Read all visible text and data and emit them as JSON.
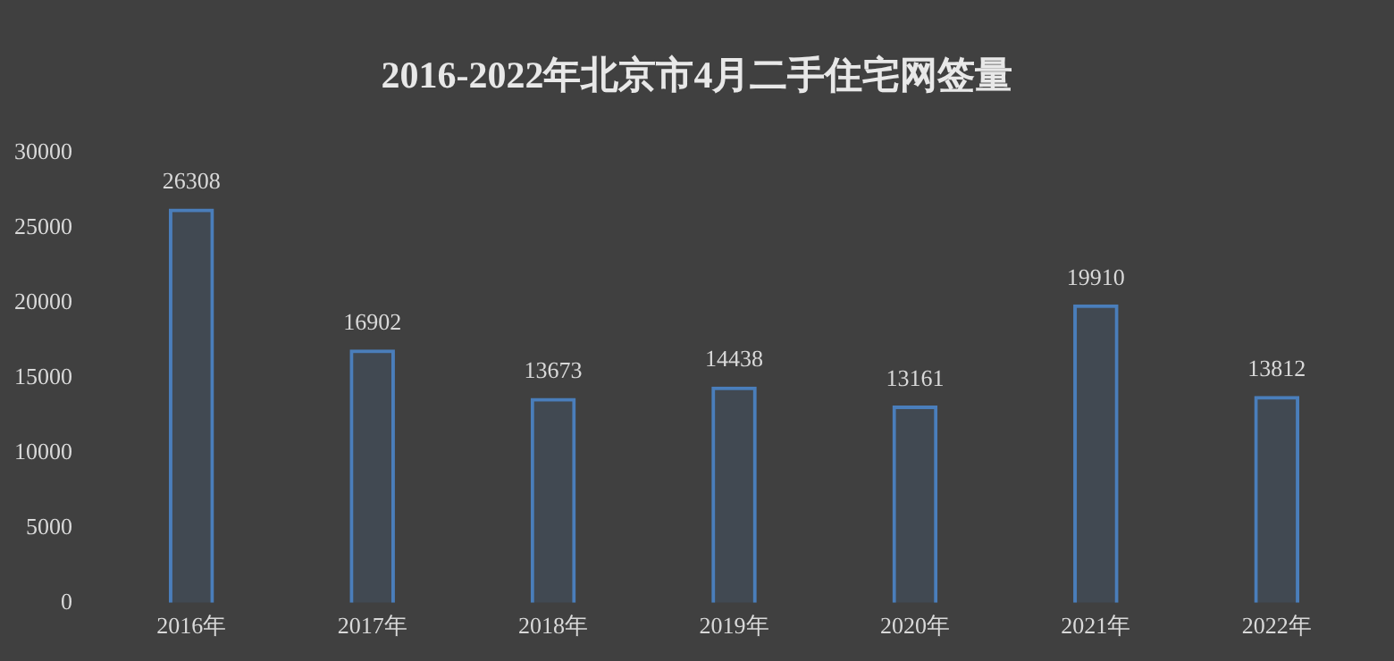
{
  "chart_data": {
    "type": "bar",
    "title": "2016-2022年北京市4月二手住宅网签量",
    "categories": [
      "2016年",
      "2017年",
      "2018年",
      "2019年",
      "2020年",
      "2021年",
      "2022年"
    ],
    "values": [
      26308,
      16902,
      13673,
      14438,
      13161,
      19910,
      13812
    ],
    "color": "#4a7ebb",
    "ylim": [
      0,
      30000
    ],
    "yticks": [
      0,
      5000,
      10000,
      15000,
      20000,
      25000,
      30000
    ],
    "grid": false,
    "data_labels": true
  }
}
